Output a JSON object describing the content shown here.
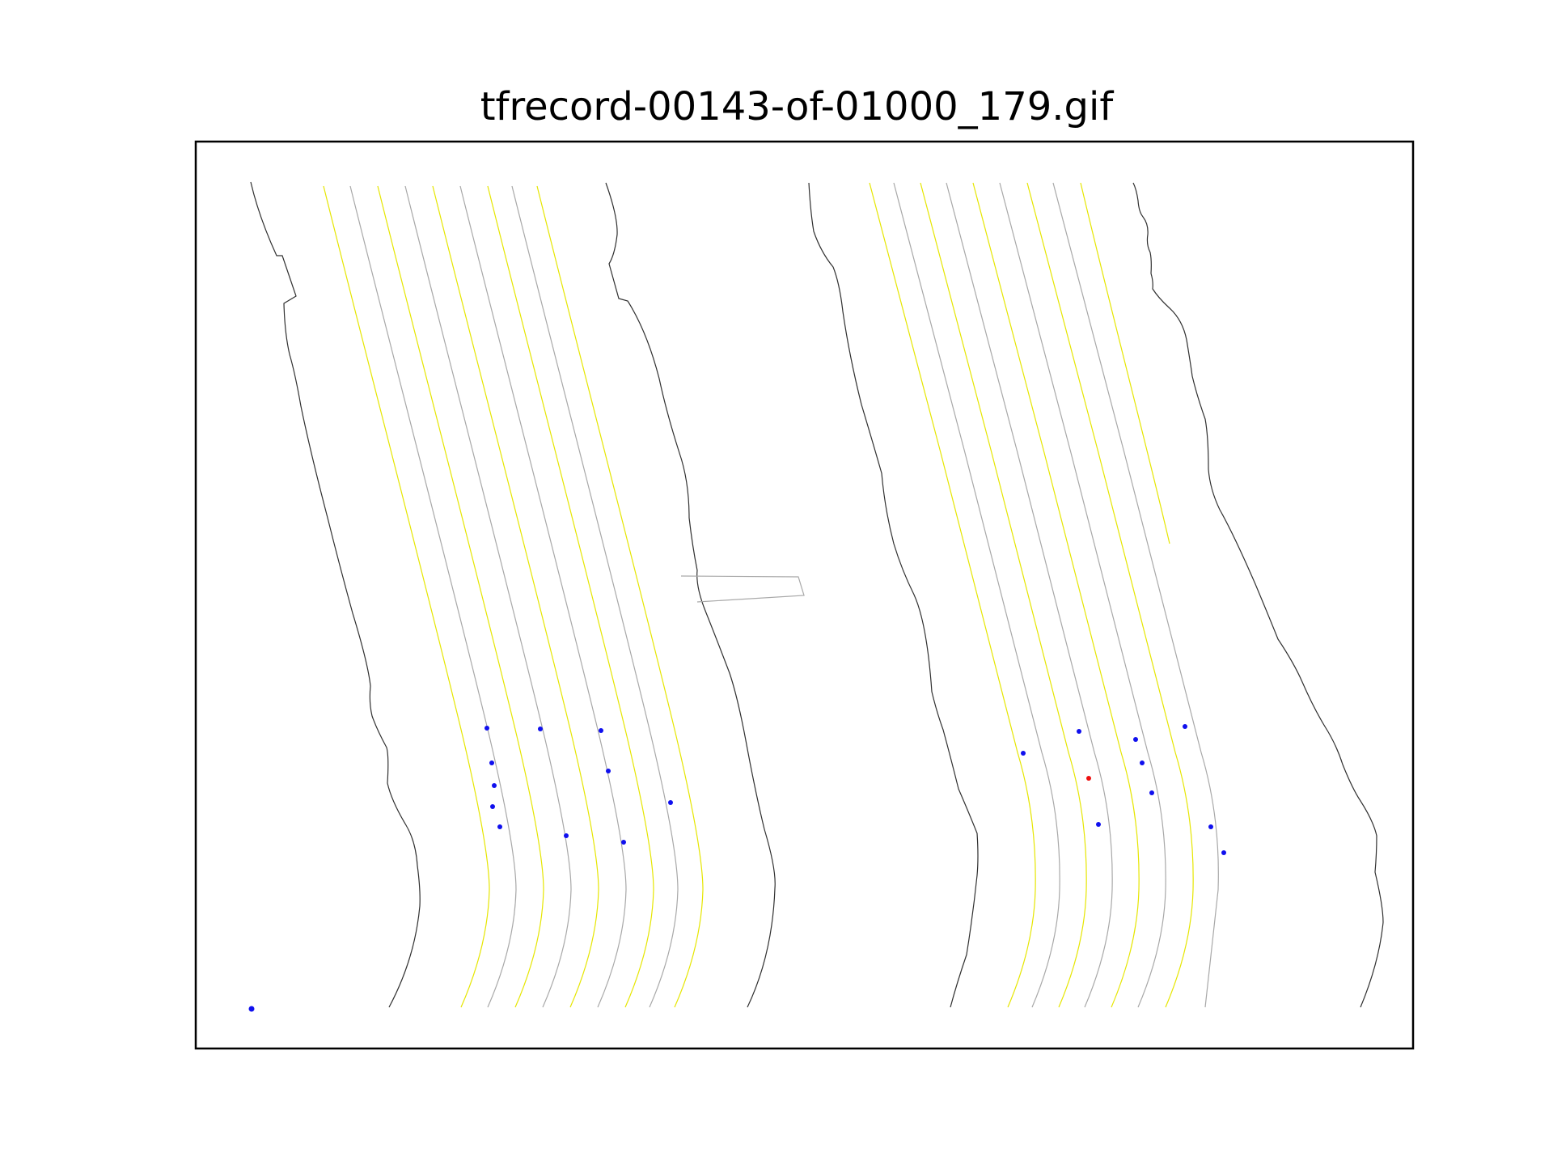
{
  "title": "tfrecord-00143-of-01000_179.gif",
  "colors": {
    "road_edge": "#303030",
    "lane_gray": "#a8a8a8",
    "lane_yellow": "#e6e600",
    "agent": "#1010ee",
    "ego": "#ee1010",
    "frame": "#000000"
  }
}
